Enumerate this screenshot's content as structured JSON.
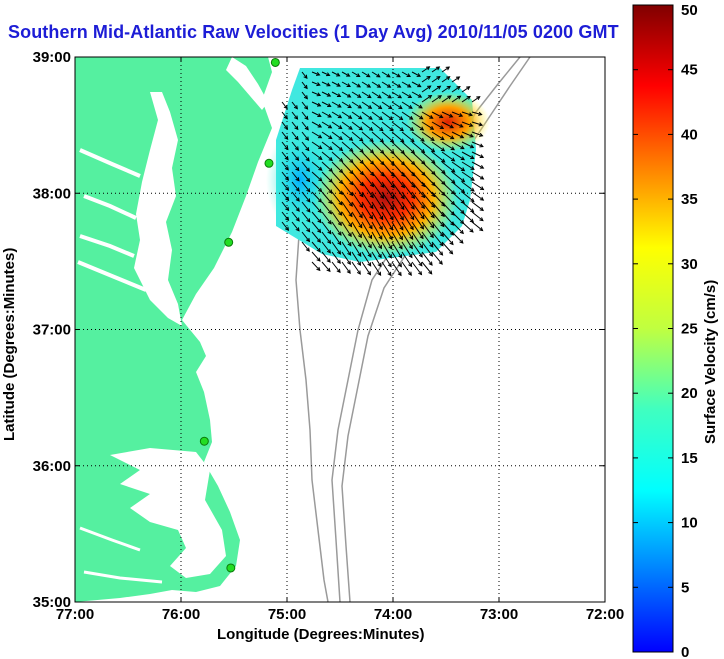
{
  "title": "Southern Mid-Atlantic Raw Velocities (1 Day Avg) 2010/11/05 0200 GMT",
  "xlabel": "Longitude (Degrees:Minutes)",
  "ylabel": "Latitude (Degrees:Minutes)",
  "colorbar": {
    "label": "Surface Velocity (cm/s)",
    "min": 0,
    "max": 50,
    "ticks": [
      "0",
      "5",
      "10",
      "15",
      "20",
      "25",
      "30",
      "35",
      "40",
      "45",
      "50"
    ]
  },
  "map": {
    "x_ticks": [
      "77:00",
      "76:00",
      "75:00",
      "74:00",
      "73:00",
      "72:00"
    ],
    "y_ticks": [
      "39:00",
      "38:00",
      "37:00",
      "36:00",
      "35:00"
    ],
    "lon_range": [
      -77,
      -72
    ],
    "lat_range": [
      35,
      39
    ],
    "grid": "dotted",
    "land_color": "#55f0a0",
    "vector_color": "#000000",
    "peak_speed_location": [
      -74.0,
      37.95
    ],
    "sites": [
      {
        "lon": -75.11,
        "lat": 38.96
      },
      {
        "lon": -75.17,
        "lat": 38.22
      },
      {
        "lon": -75.55,
        "lat": 37.64
      },
      {
        "lon": -75.78,
        "lat": 36.18
      },
      {
        "lon": -75.53,
        "lat": 35.25
      }
    ]
  }
}
